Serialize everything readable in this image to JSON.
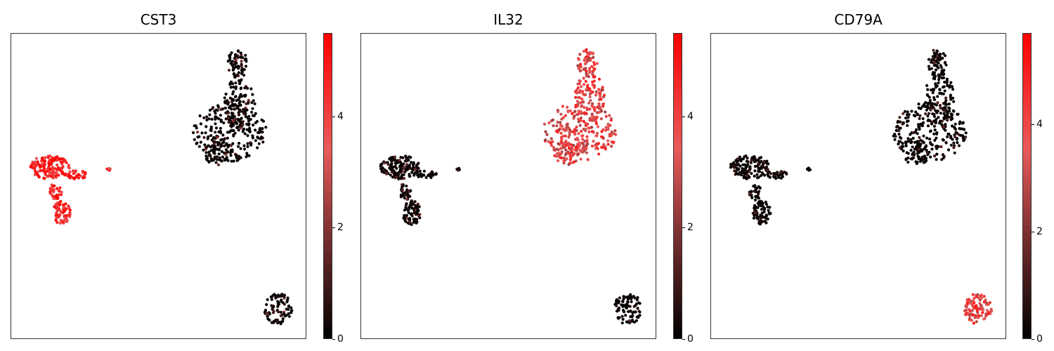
{
  "chart_data": [
    {
      "type": "scatter",
      "title": "CST3",
      "colorbar": {
        "min": 0,
        "max": 5.5,
        "ticks": [
          0,
          2,
          4
        ]
      },
      "colormap": [
        "#000000",
        "#6b2a2a",
        "#e85a5a",
        "#ff0000"
      ],
      "grid": false,
      "cluster_expression": {
        "top_right": 0.8,
        "left": 4.8,
        "left_tiny": 4.5,
        "bottom_right": 0.9
      }
    },
    {
      "type": "scatter",
      "title": "IL32",
      "colorbar": {
        "min": 0,
        "max": 5.5,
        "ticks": [
          0,
          2,
          4
        ]
      },
      "colormap": [
        "#000000",
        "#6b2a2a",
        "#e85a5a",
        "#ff0000"
      ],
      "grid": false,
      "cluster_expression": {
        "top_right": 3.6,
        "left": 0.6,
        "left_tiny": 0.2,
        "bottom_right": 0.5
      }
    },
    {
      "type": "scatter",
      "title": "CD79A",
      "colorbar": {
        "min": 0,
        "max": 5.7,
        "ticks": [
          0,
          2,
          4
        ]
      },
      "colormap": [
        "#000000",
        "#6b2a2a",
        "#e85a5a",
        "#ff0000"
      ],
      "grid": false,
      "cluster_expression": {
        "top_right": 0.3,
        "left": 0.3,
        "left_tiny": 0.1,
        "bottom_right": 3.9
      }
    }
  ]
}
